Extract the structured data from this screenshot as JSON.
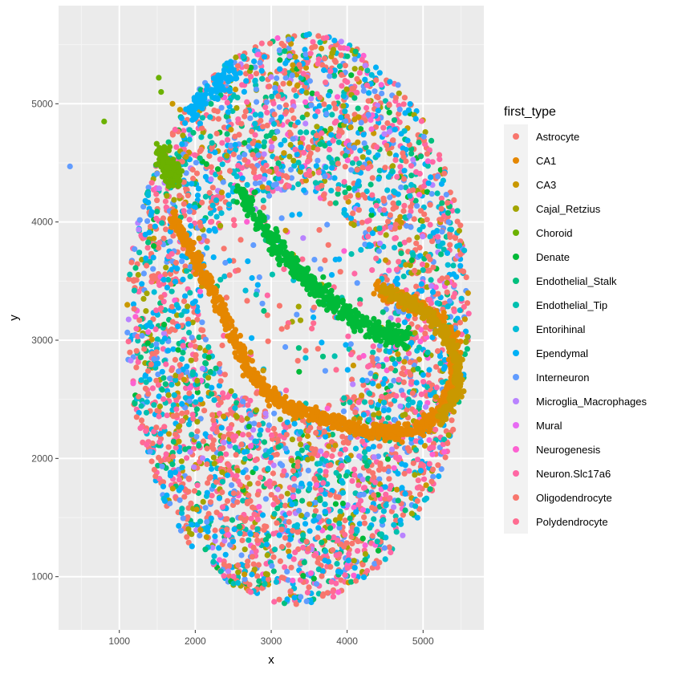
{
  "chart_data": {
    "type": "scatter",
    "xlabel": "x",
    "ylabel": "y",
    "xlim": [
      200,
      5800
    ],
    "ylim": [
      550,
      5830
    ],
    "x_ticks": [
      1000,
      2000,
      3000,
      4000,
      5000
    ],
    "y_ticks": [
      1000,
      2000,
      3000,
      4000,
      5000
    ],
    "grid": true,
    "legend_title": "first_type",
    "legend_position": "right",
    "legend": [
      {
        "name": "Astrocyte",
        "color": "#F8766D"
      },
      {
        "name": "CA1",
        "color": "#E58700"
      },
      {
        "name": "CA3",
        "color": "#C99800"
      },
      {
        "name": "Cajal_Retzius",
        "color": "#A3A500"
      },
      {
        "name": "Choroid",
        "color": "#6BB100"
      },
      {
        "name": "Denate",
        "color": "#00BA38"
      },
      {
        "name": "Endothelial_Stalk",
        "color": "#00BF7D"
      },
      {
        "name": "Endothelial_Tip",
        "color": "#00C0AF"
      },
      {
        "name": "Entorihinal",
        "color": "#00BCD8"
      },
      {
        "name": "Ependymal",
        "color": "#00B0F6"
      },
      {
        "name": "Interneuron",
        "color": "#619CFF"
      },
      {
        "name": "Microglia_Macrophages",
        "color": "#B983FF"
      },
      {
        "name": "Mural",
        "color": "#E76BF3"
      },
      {
        "name": "Neurogenesis",
        "color": "#FD61D1"
      },
      {
        "name": "Neuron.Slc17a6",
        "color": "#FF67A4"
      },
      {
        "name": "Oligodendrocyte",
        "color": "#F8766D"
      },
      {
        "name": "Polydendrocyte",
        "color": "#FF6C91"
      }
    ],
    "region": {
      "center": [
        3350,
        3180
      ],
      "semi_axes": [
        2250,
        2420
      ],
      "tilt_deg": -8
    },
    "structures": [
      {
        "label": "CA1",
        "points": [
          [
            1700,
            4050
          ],
          [
            1950,
            3750
          ],
          [
            2200,
            3450
          ],
          [
            2450,
            3100
          ],
          [
            2700,
            2750
          ],
          [
            2950,
            2550
          ],
          [
            3250,
            2430
          ],
          [
            3650,
            2350
          ],
          [
            4050,
            2270
          ],
          [
            4450,
            2210
          ],
          [
            4850,
            2230
          ],
          [
            5200,
            2380
          ],
          [
            5400,
            2650
          ],
          [
            5430,
            2950
          ],
          [
            5200,
            3200
          ],
          [
            4800,
            3330
          ],
          [
            4400,
            3430
          ]
        ]
      },
      {
        "label": "Denate",
        "points": [
          [
            2600,
            4250
          ],
          [
            2900,
            3950
          ],
          [
            3200,
            3700
          ],
          [
            3500,
            3500
          ],
          [
            3800,
            3330
          ],
          [
            4100,
            3170
          ],
          [
            4450,
            3060
          ],
          [
            4800,
            3020
          ]
        ]
      },
      {
        "label": "Choroid",
        "points": [
          [
            1550,
            4600
          ],
          [
            1650,
            4450
          ],
          [
            1750,
            4350
          ]
        ]
      },
      {
        "label": "Ependymal",
        "points": [
          [
            1900,
            4900
          ],
          [
            2200,
            5100
          ],
          [
            2500,
            5250
          ]
        ]
      }
    ],
    "outliers": [
      {
        "x": 350,
        "y": 4470,
        "label": "Interneuron"
      },
      {
        "x": 800,
        "y": 4850,
        "label": "Choroid"
      },
      {
        "x": 1520,
        "y": 5220,
        "label": "Choroid"
      },
      {
        "x": 1550,
        "y": 5100,
        "label": "Choroid"
      },
      {
        "x": 1800,
        "y": 4950,
        "label": "CA3"
      },
      {
        "x": 1700,
        "y": 5000,
        "label": "CA3"
      }
    ]
  }
}
